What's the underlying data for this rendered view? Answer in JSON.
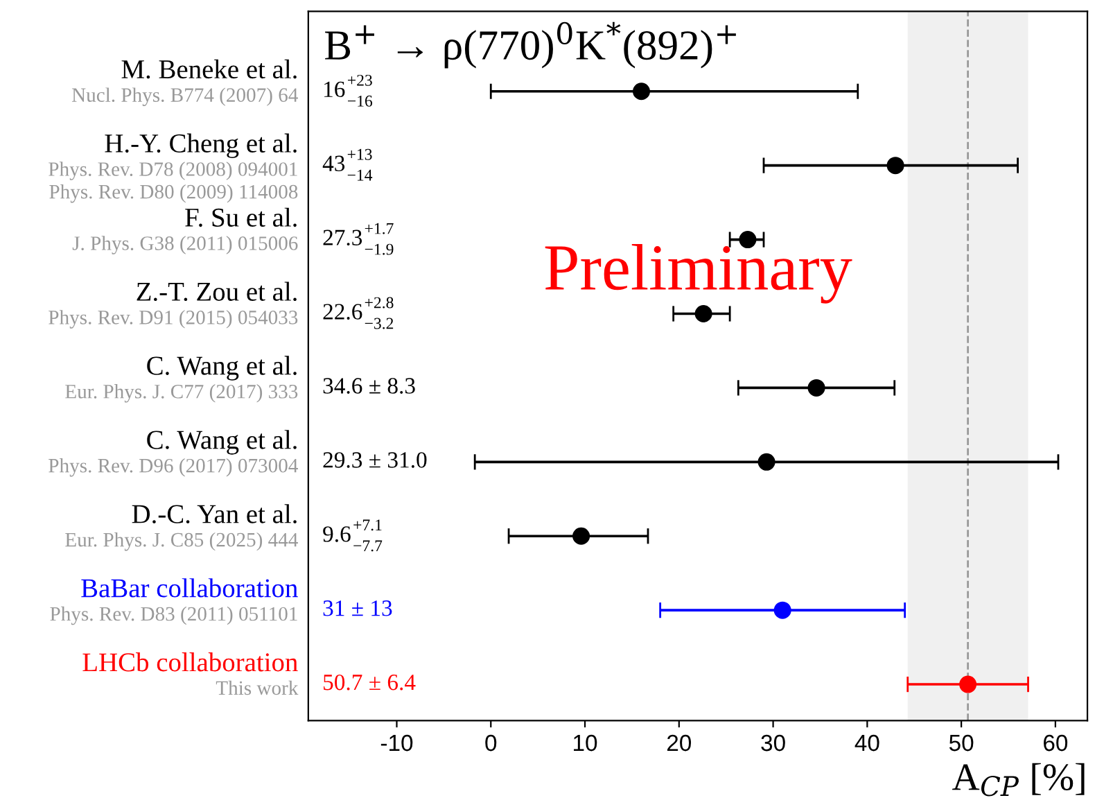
{
  "chart_data": {
    "type": "scatter",
    "orientation": "horizontal",
    "title": "B$^{+}$ → ρ(770)$^{0}$K$^{*}$(892)$^{+}$",
    "xlabel": "A$_{CP}$ [%]",
    "categories": [
      "M. Beneke et al.",
      "H.-Y. Cheng et al.",
      "F. Su et al.",
      "Z.-T. Zou et al.",
      "C. Wang et al.",
      "C. Wang et al.",
      "D.-C. Yan et al.",
      "BaBar collaboration",
      "LHCb collaboration"
    ],
    "values": [
      16,
      43,
      27.3,
      22.6,
      34.6,
      29.3,
      9.6,
      31,
      50.7
    ],
    "errors": [
      [
        0,
        39
      ],
      [
        29,
        56
      ],
      [
        25.4,
        29.0
      ],
      [
        19.4,
        25.4
      ],
      8.3,
      31.0,
      [
        1.9,
        16.7
      ],
      13,
      6.4
    ],
    "colors": [
      "#000000",
      "#000000",
      "#000000",
      "#000000",
      "#000000",
      "#000000",
      "#000000",
      "#0000ff",
      "#ff0000"
    ],
    "marker": "circle",
    "annotations": [
      "Nucl. Phys. B774 (2007) 64",
      "Phys. Rev. D78 (2008) 094001\nPhys. Rev. D80 (2009) 114008",
      "J. Phys. G38 (2011) 015006",
      "Phys. Rev. D91 (2015) 054033",
      "Eur. Phys. J. C77 (2017) 333",
      "Phys. Rev. D96 (2017) 073004",
      "Eur. Phys. J. C85 (2025) 444",
      "Phys. Rev. D83 (2011) 051101",
      "This work",
      "16$^{+23}$$_{−16}$",
      "43$^{+13}$$_{−14}$",
      "27.3$^{+1.7}$$_{−1.9}$",
      "22.6$^{+2.8}$$_{−3.2}$",
      "34.6 ± 8.3",
      "29.3 ± 31.0",
      "9.6$^{+7.1}$$_{−7.7}$",
      "31 ± 13",
      "50.7 ± 6.4",
      "Preliminary"
    ],
    "bands": [
      {
        "axis": "x",
        "from": 44.3,
        "to": 57.1,
        "color": "#f0f0f0"
      }
    ],
    "ref_lines": [
      {
        "axis": "x",
        "value": 50.7,
        "color": "#999999",
        "line_style": "dashed"
      }
    ],
    "xlim": [
      -19.4,
      63.4
    ],
    "xticks": [
      -10,
      0,
      10,
      20,
      30,
      40,
      50,
      60
    ],
    "grid": false
  }
}
